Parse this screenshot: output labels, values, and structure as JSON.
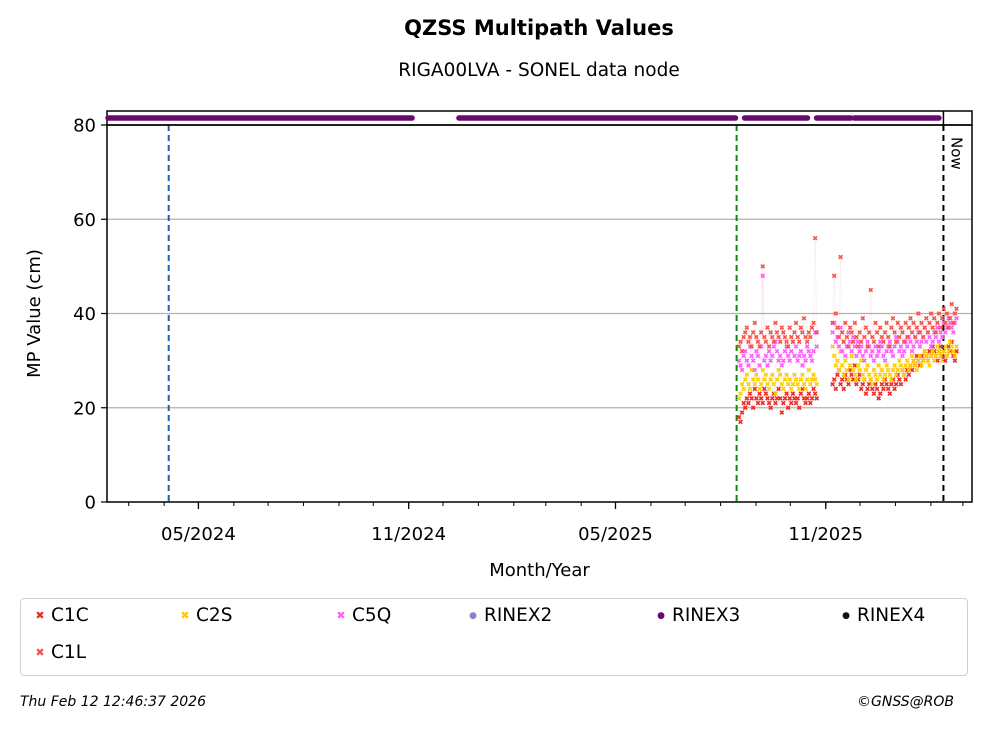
{
  "chart_data": {
    "type": "scatter",
    "title": "QZSS Multipath Values",
    "subtitle": "RIGA00LVA - SONEL data node",
    "xlabel": "Month/Year",
    "ylabel": "MP Value (cm)",
    "ylim": [
      0,
      80
    ],
    "yticks": [
      "0",
      "20",
      "40",
      "60",
      "80"
    ],
    "xlim": [
      "2024-02-11",
      "2026-03-09"
    ],
    "xticks": [
      {
        "date": "2024-05-01",
        "label": "05/2024"
      },
      {
        "date": "2024-11-01",
        "label": "11/2024"
      },
      {
        "date": "2025-05-01",
        "label": "05/2025"
      },
      {
        "date": "2025-11-01",
        "label": "11/2025"
      }
    ],
    "grid": "horizontal",
    "vlines": [
      {
        "date": "2024-04-05",
        "color": "#1f5fa8",
        "style": "dashed",
        "label": ""
      },
      {
        "date": "2025-08-15",
        "color": "#118811",
        "style": "dashed",
        "label": ""
      },
      {
        "date": "2026-02-12",
        "color": "#000000",
        "style": "dashed",
        "label": "Now"
      }
    ],
    "rinex_bars": [
      {
        "format": "RINEX3",
        "start": "2024-02-11",
        "end": "2024-11-04",
        "color": "#6a0a6f"
      },
      {
        "format": "RINEX3",
        "start": "2024-12-15",
        "end": "2025-08-14",
        "color": "#6a0a6f"
      },
      {
        "format": "RINEX3",
        "start": "2025-08-22",
        "end": "2025-10-16",
        "color": "#6a0a6f"
      },
      {
        "format": "RINEX3",
        "start": "2025-10-24",
        "end": "2025-11-23",
        "color": "#6a0a6f"
      },
      {
        "format": "RINEX3",
        "start": "2025-11-26",
        "end": "2026-02-08",
        "color": "#6a0a6f"
      }
    ],
    "series_start": "2025-08-17",
    "series": [
      {
        "name": "C1C",
        "color": "#ee2a24",
        "marker": "x",
        "values": [
          18,
          17,
          19,
          21,
          20,
          22,
          21,
          23,
          22,
          20,
          24,
          22,
          21,
          23,
          22,
          21,
          24,
          23,
          22,
          21,
          20,
          22,
          23,
          21,
          22,
          24,
          22,
          19,
          21,
          22,
          23,
          20,
          22,
          21,
          23,
          22,
          21,
          22,
          20,
          23,
          24,
          22,
          21,
          22,
          23,
          21,
          22,
          24,
          23,
          22,
          null,
          null,
          null,
          null,
          null,
          null,
          null,
          null,
          null,
          25,
          26,
          24,
          27,
          28,
          25,
          26,
          24,
          27,
          26,
          25,
          28,
          27,
          26,
          29,
          25,
          26,
          27,
          24,
          25,
          26,
          23,
          24,
          25,
          26,
          24,
          23,
          25,
          24,
          22,
          23,
          25,
          24,
          26,
          25,
          24,
          23,
          25,
          26,
          24,
          25,
          27,
          26,
          25,
          28,
          27,
          26,
          28,
          27,
          29,
          28,
          30,
          29,
          31,
          30,
          29,
          31,
          30,
          32,
          31,
          30,
          32,
          31,
          33,
          32,
          31,
          30,
          32,
          33,
          31,
          32,
          30,
          31,
          33,
          32,
          34,
          31,
          30,
          32
        ]
      },
      {
        "name": "C2S",
        "color": "#ffcc00",
        "marker": "x",
        "values": [
          22,
          23,
          25,
          24,
          26,
          27,
          25,
          24,
          28,
          26,
          25,
          27,
          26,
          24,
          25,
          28,
          26,
          27,
          25,
          24,
          26,
          27,
          25,
          23,
          26,
          28,
          27,
          25,
          24,
          26,
          27,
          25,
          26,
          24,
          25,
          27,
          26,
          25,
          24,
          26,
          27,
          25,
          24,
          26,
          28,
          25,
          26,
          27,
          26,
          25,
          null,
          null,
          null,
          null,
          null,
          null,
          null,
          null,
          null,
          33,
          31,
          29,
          30,
          28,
          32,
          29,
          27,
          30,
          28,
          26,
          29,
          31,
          28,
          27,
          26,
          29,
          28,
          30,
          27,
          26,
          28,
          29,
          27,
          26,
          25,
          28,
          27,
          26,
          29,
          27,
          28,
          26,
          27,
          29,
          28,
          27,
          26,
          28,
          29,
          27,
          28,
          30,
          29,
          28,
          27,
          29,
          30,
          28,
          29,
          31,
          30,
          29,
          28,
          30,
          31,
          29,
          30,
          32,
          31,
          30,
          29,
          31,
          32,
          30,
          31,
          33,
          32,
          31,
          30,
          32,
          33,
          31,
          32,
          34,
          33,
          32,
          31,
          33
        ]
      },
      {
        "name": "C5Q",
        "color": "#ff5cff",
        "marker": "x",
        "values": [
          30,
          29,
          28,
          31,
          32,
          30,
          29,
          33,
          31,
          30,
          28,
          32,
          31,
          29,
          33,
          48,
          30,
          31,
          29,
          32,
          30,
          31,
          33,
          34,
          32,
          30,
          31,
          29,
          30,
          32,
          33,
          31,
          30,
          32,
          34,
          31,
          33,
          30,
          31,
          32,
          29,
          31,
          30,
          33,
          32,
          31,
          30,
          32,
          36,
          33,
          null,
          null,
          null,
          null,
          null,
          null,
          null,
          null,
          null,
          36,
          38,
          34,
          35,
          33,
          37,
          32,
          34,
          31,
          33,
          36,
          34,
          32,
          35,
          33,
          31,
          34,
          32,
          33,
          31,
          30,
          32,
          34,
          33,
          31,
          32,
          30,
          33,
          31,
          32,
          34,
          33,
          31,
          30,
          32,
          33,
          34,
          32,
          31,
          33,
          35,
          34,
          32,
          33,
          31,
          32,
          34,
          33,
          35,
          34,
          32,
          33,
          35,
          34,
          36,
          33,
          34,
          35,
          37,
          34,
          36,
          35,
          33,
          34,
          36,
          35,
          37,
          34,
          36,
          35,
          38,
          36,
          37,
          39,
          38,
          37,
          36,
          38,
          39
        ]
      },
      {
        "name": "C1L",
        "color": "#f4544a",
        "marker": "x",
        "values": [
          33,
          34,
          32,
          35,
          36,
          37,
          34,
          35,
          33,
          36,
          38,
          35,
          34,
          33,
          36,
          50,
          35,
          34,
          37,
          33,
          36,
          35,
          34,
          38,
          36,
          35,
          34,
          37,
          36,
          35,
          34,
          33,
          37,
          35,
          34,
          36,
          38,
          35,
          34,
          37,
          36,
          39,
          35,
          34,
          36,
          35,
          37,
          38,
          56,
          36,
          null,
          null,
          null,
          null,
          null,
          null,
          null,
          null,
          null,
          38,
          48,
          40,
          37,
          35,
          52,
          36,
          34,
          38,
          35,
          33,
          37,
          36,
          34,
          38,
          35,
          33,
          36,
          34,
          39,
          35,
          37,
          33,
          36,
          45,
          35,
          34,
          38,
          36,
          33,
          37,
          35,
          34,
          36,
          38,
          35,
          33,
          37,
          39,
          36,
          34,
          38,
          35,
          37,
          36,
          34,
          38,
          35,
          37,
          39,
          36,
          38,
          35,
          37,
          40,
          36,
          38,
          35,
          37,
          39,
          36,
          38,
          40,
          37,
          39,
          36,
          38,
          40,
          37,
          39,
          41,
          38,
          40,
          37,
          39,
          42,
          38,
          40,
          41
        ]
      }
    ],
    "legend": {
      "placement": "bottom",
      "items": [
        {
          "label": "C1C",
          "color": "#ee2a24",
          "marker": "x"
        },
        {
          "label": "C2S",
          "color": "#ffcc00",
          "marker": "x"
        },
        {
          "label": "C5Q",
          "color": "#ff5cff",
          "marker": "x"
        },
        {
          "label": "RINEX2",
          "color": "#8a85c4",
          "marker": "dot"
        },
        {
          "label": "RINEX3",
          "color": "#6a0a6f",
          "marker": "dot"
        },
        {
          "label": "RINEX4",
          "color": "#1a0a1e",
          "marker": "dot"
        },
        {
          "label": "C1L",
          "color": "#f4544a",
          "marker": "x"
        }
      ]
    }
  },
  "footer": {
    "timestamp": "Thu Feb 12 12:46:37 2026",
    "credit": "©GNSS@ROB"
  }
}
